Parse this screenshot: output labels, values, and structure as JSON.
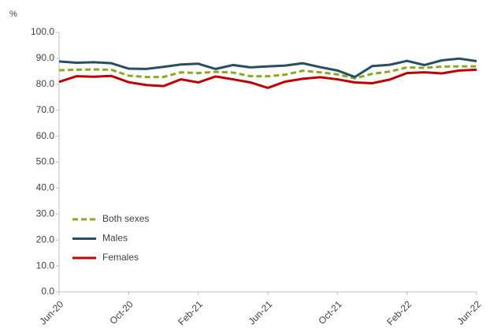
{
  "chart_data": {
    "type": "line",
    "y_label": "%",
    "categories": [
      "Jun-20",
      null,
      null,
      null,
      "Oct-20",
      null,
      null,
      null,
      "Feb-21",
      null,
      null,
      null,
      "Jun-21",
      null,
      null,
      null,
      "Oct-21",
      null,
      null,
      null,
      "Feb-22",
      null,
      null,
      null,
      "Jun-22"
    ],
    "series": [
      {
        "name": "Both sexes",
        "color": "#8aa823",
        "style": "dashed",
        "values": [
          85.4,
          85.6,
          85.7,
          85.6,
          83.3,
          82.8,
          82.8,
          84.6,
          84.3,
          84.8,
          84.5,
          83.1,
          83.1,
          83.7,
          85.2,
          84.6,
          83.8,
          82.3,
          84.0,
          84.9,
          86.5,
          86.3,
          86.8,
          86.9,
          86.9
        ]
      },
      {
        "name": "Males",
        "color": "#264f63",
        "style": "solid",
        "values": [
          88.8,
          88.3,
          88.5,
          88.1,
          86.0,
          85.9,
          86.7,
          87.6,
          87.9,
          85.9,
          87.4,
          86.5,
          86.9,
          87.2,
          88.1,
          86.6,
          85.3,
          82.8,
          87.0,
          87.5,
          89.0,
          87.4,
          89.2,
          89.9,
          88.9
        ]
      },
      {
        "name": "Females",
        "color": "#c00000",
        "style": "solid",
        "values": [
          80.9,
          83.1,
          82.9,
          83.2,
          80.8,
          79.7,
          79.3,
          81.9,
          80.7,
          83.0,
          81.9,
          80.7,
          78.6,
          81.0,
          82.1,
          82.7,
          81.9,
          80.7,
          80.4,
          81.8,
          84.3,
          84.6,
          84.2,
          85.3,
          85.6
        ]
      }
    ],
    "ylim": [
      0,
      100
    ],
    "yticks": [
      {
        "value": 0,
        "label": "0.0"
      },
      {
        "value": 10,
        "label": "10.0"
      },
      {
        "value": 20,
        "label": "20.0"
      },
      {
        "value": 30,
        "label": "30.0"
      },
      {
        "value": 40,
        "label": "40.0"
      },
      {
        "value": 50,
        "label": "50.0"
      },
      {
        "value": 60,
        "label": "60.0"
      },
      {
        "value": 70,
        "label": "70.0"
      },
      {
        "value": 80,
        "label": "80.0"
      },
      {
        "value": 90,
        "label": "90.0"
      },
      {
        "value": 100,
        "label": "100.0"
      }
    ],
    "grid": false,
    "legend": "lower left"
  }
}
